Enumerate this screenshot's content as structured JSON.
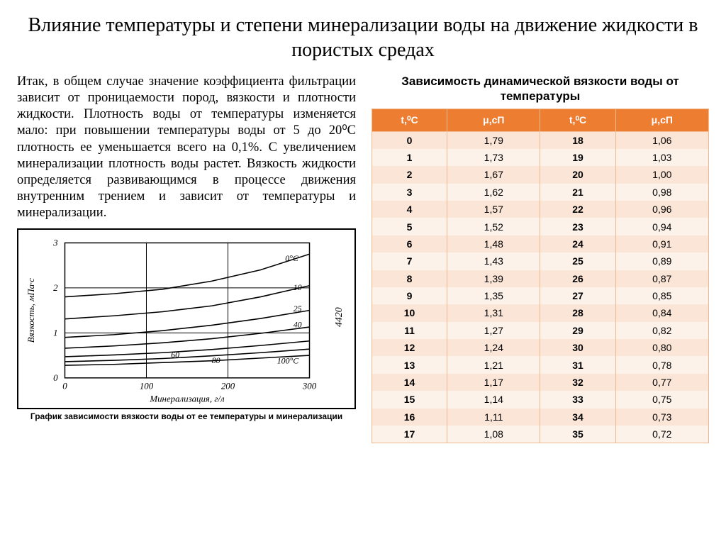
{
  "title": "Влияние температуры и степени минерализации воды на движение жидкости в пористых средах",
  "paragraph": "Итак, в общем случае значение коэффициента фильтрации зависит от проницаемости пород, вязкости и плотности жидкости. Плотность воды от температуры изменяется мало: при повышении температуры воды от 5 до 20⁰С плотность ее уменьшается всего на 0,1%. С увеличением минерализации плотность воды растет. Вязкость жидкости определяется развивающимся в процессе движения внутренним трением и зависит от температуры и минерализации.",
  "chart": {
    "caption": "График зависимости вязкости воды от ее температуры и минерализации",
    "xlabel": "Минерализация, г/л",
    "ylabel": "Вязкость, мПа·с",
    "xticks": [
      0,
      100,
      200,
      300
    ],
    "yticks": [
      0,
      1,
      2,
      3
    ],
    "xlim": [
      0,
      300
    ],
    "ylim": [
      0,
      3
    ],
    "line_color": "#000000",
    "bg_color": "#ffffff",
    "grid_color": "#000000",
    "side_label": "4420",
    "series": [
      {
        "label": "0°C",
        "pts": [
          [
            0,
            1.8
          ],
          [
            60,
            1.87
          ],
          [
            120,
            1.97
          ],
          [
            180,
            2.15
          ],
          [
            240,
            2.4
          ],
          [
            300,
            2.75
          ]
        ],
        "label_x": 265,
        "label_y": 2.6
      },
      {
        "label": "10",
        "pts": [
          [
            0,
            1.31
          ],
          [
            60,
            1.38
          ],
          [
            120,
            1.47
          ],
          [
            180,
            1.6
          ],
          [
            240,
            1.8
          ],
          [
            300,
            2.05
          ]
        ],
        "label_x": 275,
        "label_y": 1.95
      },
      {
        "label": "25",
        "pts": [
          [
            0,
            0.9
          ],
          [
            60,
            0.96
          ],
          [
            120,
            1.05
          ],
          [
            180,
            1.17
          ],
          [
            240,
            1.32
          ],
          [
            300,
            1.5
          ]
        ],
        "label_x": 275,
        "label_y": 1.48
      },
      {
        "label": "40",
        "pts": [
          [
            0,
            0.66
          ],
          [
            60,
            0.71
          ],
          [
            120,
            0.78
          ],
          [
            180,
            0.87
          ],
          [
            240,
            0.99
          ],
          [
            300,
            1.13
          ]
        ],
        "label_x": 275,
        "label_y": 1.12
      },
      {
        "label": "60",
        "pts": [
          [
            0,
            0.47
          ],
          [
            60,
            0.51
          ],
          [
            120,
            0.56
          ],
          [
            180,
            0.63
          ],
          [
            240,
            0.72
          ],
          [
            300,
            0.82
          ]
        ],
        "label_x": 125,
        "label_y": 0.45
      },
      {
        "label": "80",
        "pts": [
          [
            0,
            0.36
          ],
          [
            60,
            0.39
          ],
          [
            120,
            0.43
          ],
          [
            180,
            0.49
          ],
          [
            240,
            0.56
          ],
          [
            300,
            0.64
          ]
        ],
        "label_x": 175,
        "label_y": 0.33
      },
      {
        "label": "100°C",
        "pts": [
          [
            0,
            0.28
          ],
          [
            60,
            0.3
          ],
          [
            120,
            0.34
          ],
          [
            180,
            0.38
          ],
          [
            240,
            0.44
          ],
          [
            300,
            0.5
          ]
        ],
        "label_x": 255,
        "label_y": 0.32
      }
    ]
  },
  "table": {
    "title": "Зависимость динамической вязкости воды от температуры",
    "headers": [
      "t,⁰С",
      "μ,сП",
      "t,⁰С",
      "μ,сП"
    ],
    "header_bg": "#ed7d31",
    "header_fg": "#ffffff",
    "row_odd_bg": "#fbe5d6",
    "row_even_bg": "#fdf2ea",
    "border_color": "#f0b98f",
    "rows": [
      [
        "0",
        "1,79",
        "18",
        "1,06"
      ],
      [
        "1",
        "1,73",
        "19",
        "1,03"
      ],
      [
        "2",
        "1,67",
        "20",
        "1,00"
      ],
      [
        "3",
        "1,62",
        "21",
        "0,98"
      ],
      [
        "4",
        "1,57",
        "22",
        "0,96"
      ],
      [
        "5",
        "1,52",
        "23",
        "0,94"
      ],
      [
        "6",
        "1,48",
        "24",
        "0,91"
      ],
      [
        "7",
        "1,43",
        "25",
        "0,89"
      ],
      [
        "8",
        "1,39",
        "26",
        "0,87"
      ],
      [
        "9",
        "1,35",
        "27",
        "0,85"
      ],
      [
        "10",
        "1,31",
        "28",
        "0,84"
      ],
      [
        "11",
        "1,27",
        "29",
        "0,82"
      ],
      [
        "12",
        "1,24",
        "30",
        "0,80"
      ],
      [
        "13",
        "1,21",
        "31",
        "0,78"
      ],
      [
        "14",
        "1,17",
        "32",
        "0,77"
      ],
      [
        "15",
        "1,14",
        "33",
        "0,75"
      ],
      [
        "16",
        "1,11",
        "34",
        "0,73"
      ],
      [
        "17",
        "1,08",
        "35",
        "0,72"
      ]
    ]
  }
}
